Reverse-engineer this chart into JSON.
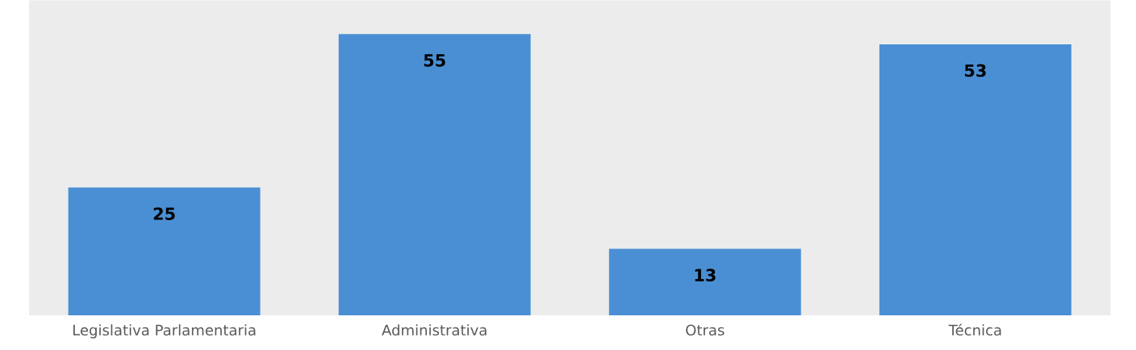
{
  "chart_data": {
    "type": "bar",
    "categories": [
      "Legislativa Parlamentaria",
      "Administrativa",
      "Otras",
      "Técnica"
    ],
    "values": [
      25,
      55,
      13,
      53
    ],
    "color": "#4a8fd4",
    "data_labels": true,
    "grid": false,
    "legend": false
  }
}
